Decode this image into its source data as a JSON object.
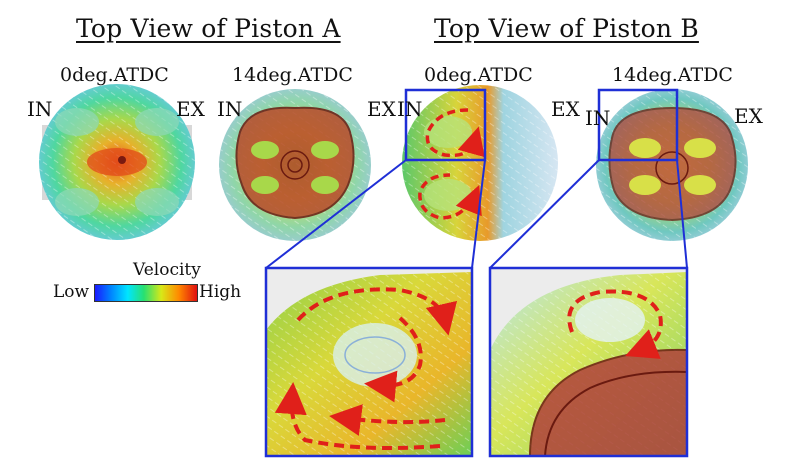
{
  "piston_a": {
    "heading": "Top View of Piston A",
    "left_label": "0deg.ATDC",
    "right_label": "14deg.ATDC",
    "in_label": "IN",
    "ex_label": "EX",
    "in_label_2": "IN",
    "ex_label_2": "EX"
  },
  "piston_b": {
    "heading": "Top View of Piston B",
    "left_label": "0deg.ATDC",
    "right_label": "14deg.ATDC",
    "in_label": "IN",
    "ex_label": "EX",
    "in_label_2": "IN",
    "ex_label_2": "EX"
  },
  "legend": {
    "title": "Velocity",
    "low": "Low",
    "high": "High"
  },
  "colors": {
    "highlight_frame": "#1f2fd6",
    "vortex_arrow": "#e0201a",
    "bowl_rim": "#8a2a1a"
  }
}
